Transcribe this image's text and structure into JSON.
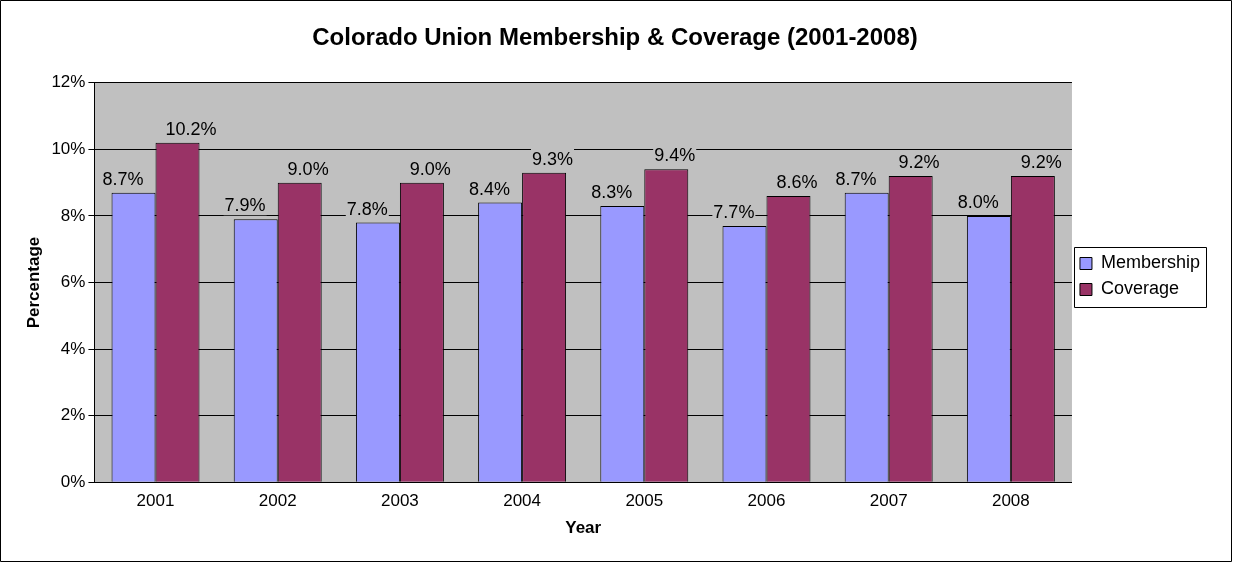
{
  "chart_data": {
    "type": "bar",
    "title": "Colorado Union Membership & Coverage (2001-2008)",
    "xlabel": "Year",
    "ylabel": "Percentage",
    "categories": [
      "2001",
      "2002",
      "2003",
      "2004",
      "2005",
      "2006",
      "2007",
      "2008"
    ],
    "series": [
      {
        "name": "Membership",
        "color": "#9999ff",
        "values": [
          8.7,
          7.9,
          7.8,
          8.4,
          8.3,
          7.7,
          8.7,
          8.0
        ],
        "value_labels": [
          "8.7%",
          "7.9%",
          "7.8%",
          "8.4%",
          "8.3%",
          "7.7%",
          "8.7%",
          "8.0%"
        ]
      },
      {
        "name": "Coverage",
        "color": "#993366",
        "values": [
          10.2,
          9.0,
          9.0,
          9.3,
          9.4,
          8.6,
          9.2,
          9.2
        ],
        "value_labels": [
          "10.2%",
          "9.0%",
          "9.0%",
          "9.3%",
          "9.4%",
          "8.6%",
          "9.2%",
          "9.2%"
        ]
      }
    ],
    "ylim": [
      0,
      12
    ],
    "yticks": [
      {
        "value": 0,
        "label": "0%"
      },
      {
        "value": 2,
        "label": "2%"
      },
      {
        "value": 4,
        "label": "4%"
      },
      {
        "value": 6,
        "label": "6%"
      },
      {
        "value": 8,
        "label": "8%"
      },
      {
        "value": 10,
        "label": "10%"
      },
      {
        "value": 12,
        "label": "12%"
      }
    ],
    "grid": "y",
    "legend": "right"
  }
}
